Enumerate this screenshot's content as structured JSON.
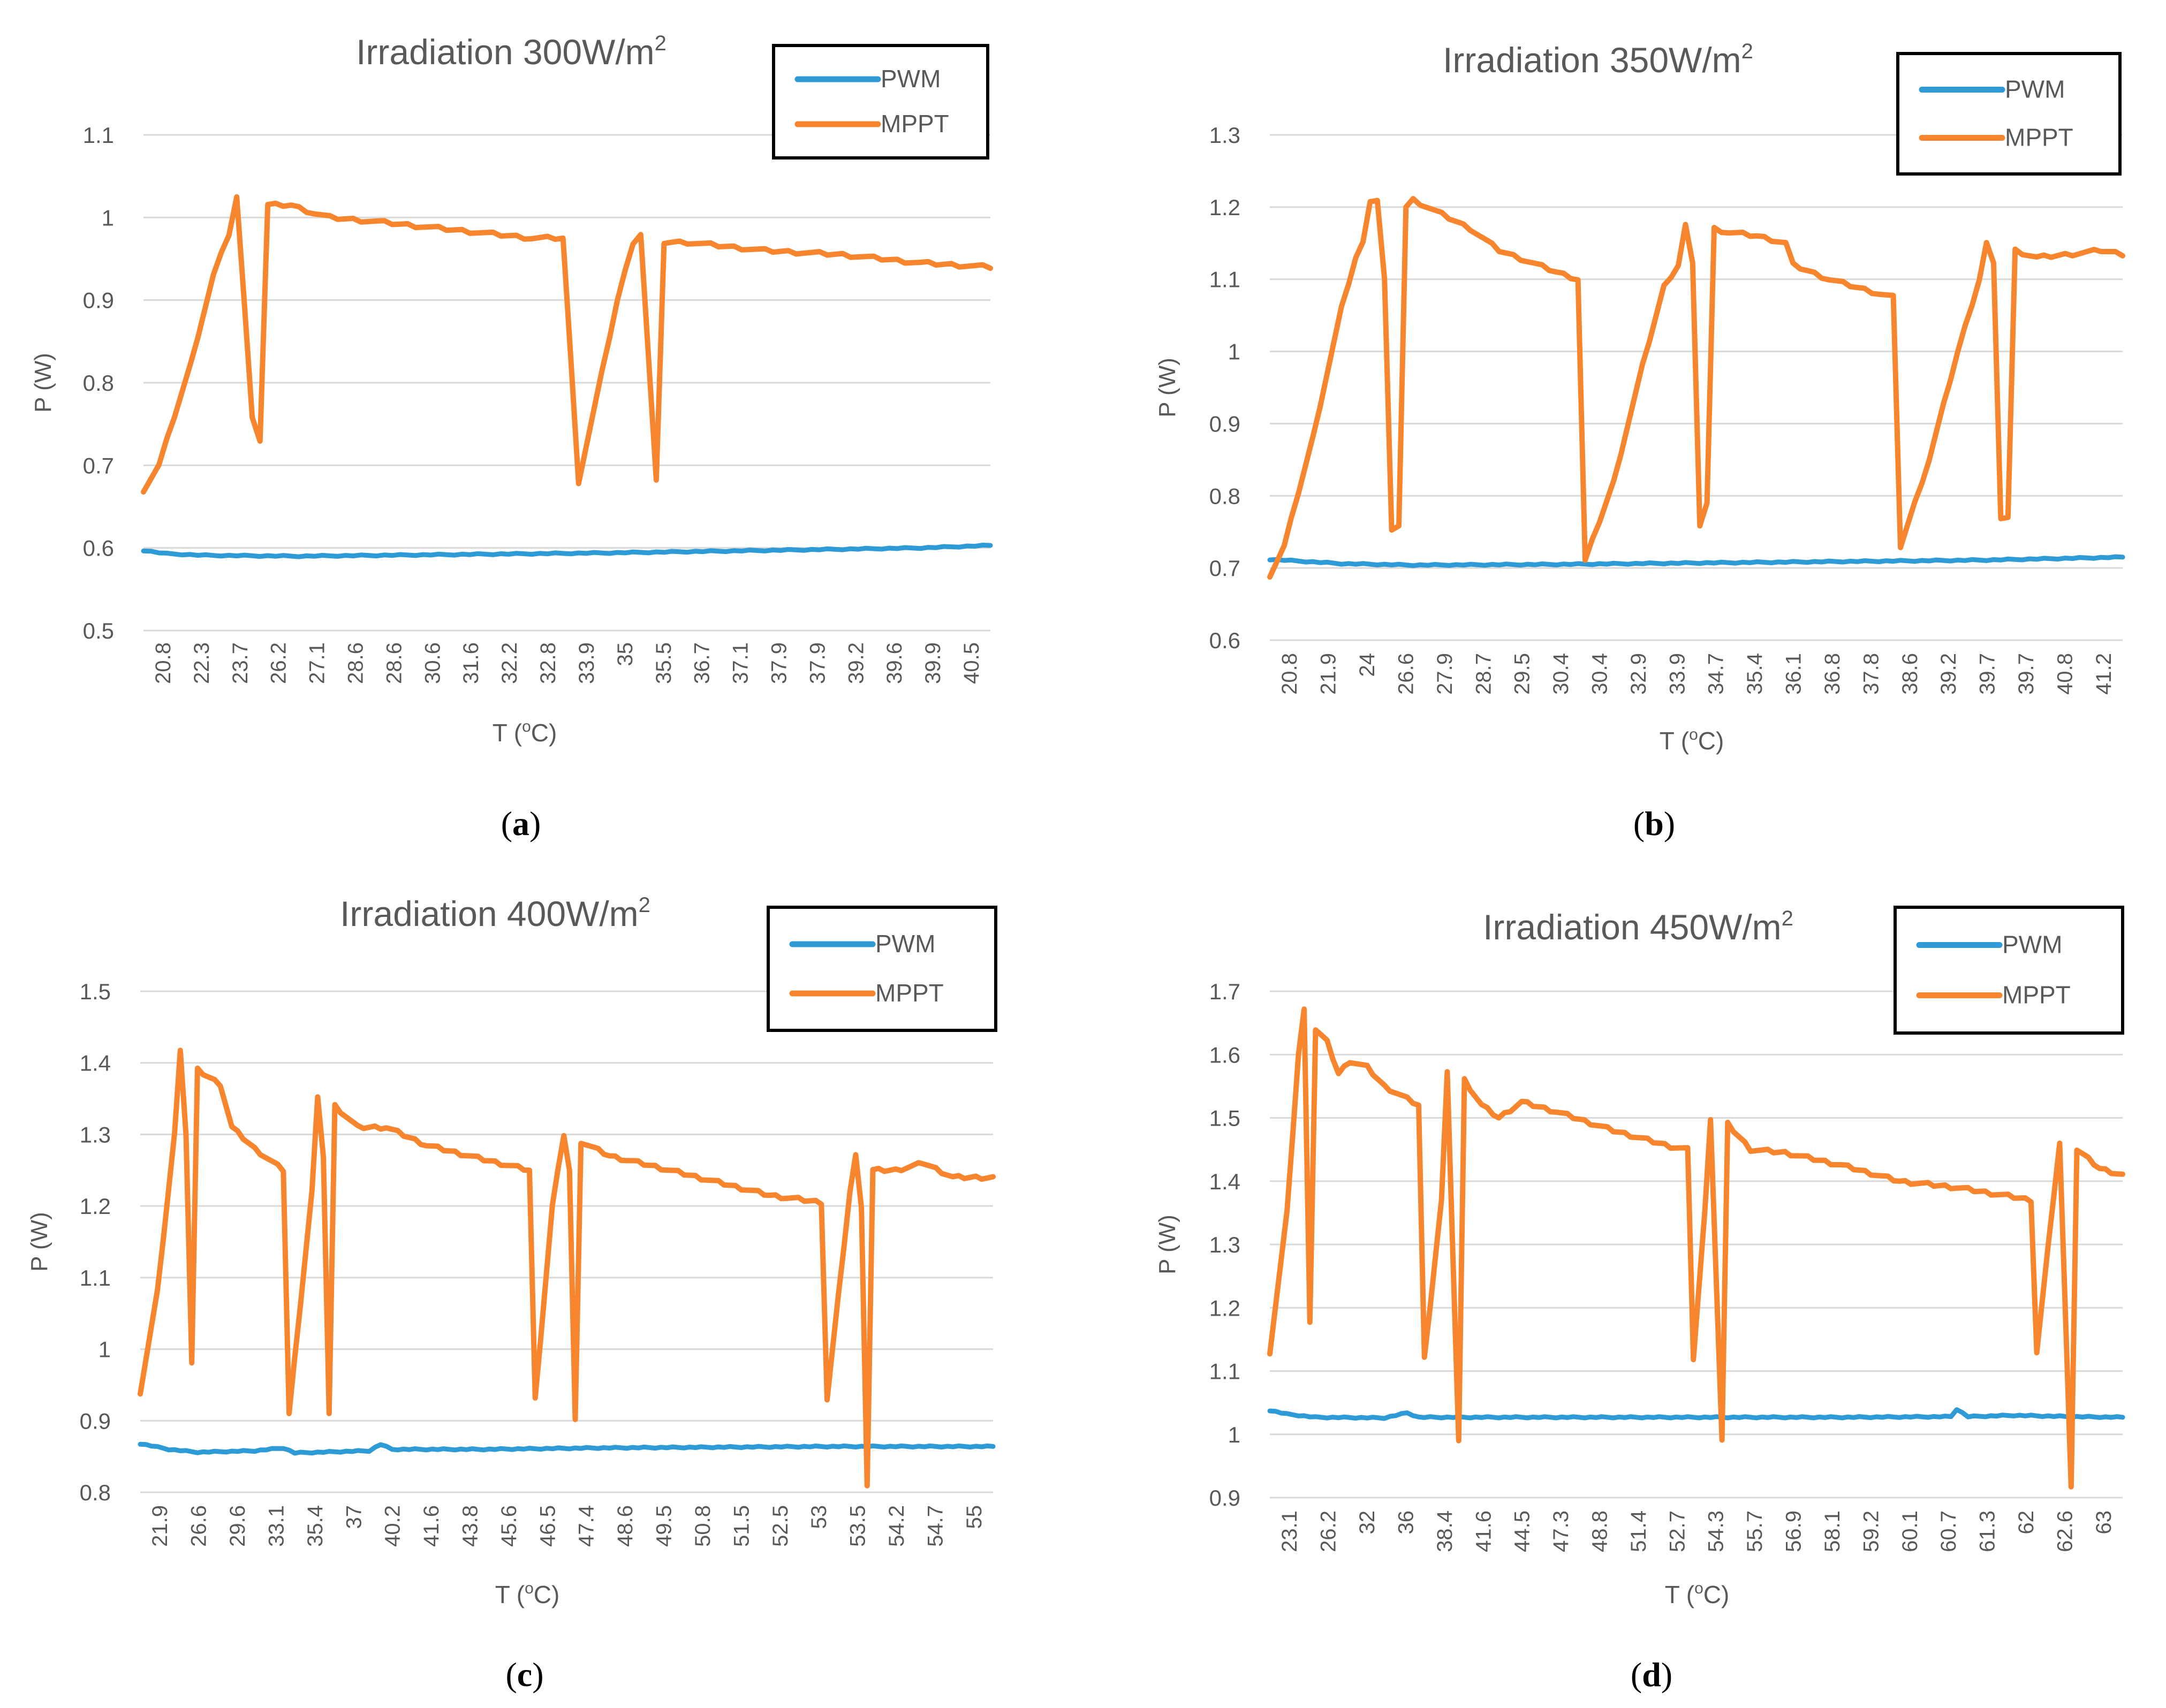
{
  "colors": {
    "pwm": "#2E9BD6",
    "mppt": "#F7852E",
    "grid": "#d9d9d9",
    "axis_text": "#595959",
    "title_text": "#595959",
    "legend_border": "#000000"
  },
  "legend_position": "top-right",
  "chart_data": [
    {
      "type": "line",
      "caption_letter": "a",
      "caption_open": "(",
      "caption_close": ")",
      "title_main": "Irradiation 300W/m",
      "title_sup": "2",
      "xlabel_main": "T (",
      "xlabel_sup": "o",
      "xlabel_end": "C)",
      "ylabel": "P (W)",
      "ylim": [
        0.5,
        1.1
      ],
      "yticks": [
        "0.5",
        "0.6",
        "0.7",
        "0.8",
        "0.9",
        "1",
        "1.1"
      ],
      "x_tick_labels": [
        "20.8",
        "22.3",
        "23.7",
        "26.2",
        "27.1",
        "28.6",
        "28.6",
        "30.6",
        "31.6",
        "32.2",
        "32.8",
        "33.9",
        "35",
        "35.5",
        "36.7",
        "37.1",
        "37.9",
        "37.9",
        "39.2",
        "39.6",
        "39.9",
        "40.5"
      ],
      "n_points": 110,
      "series": [
        {
          "name": "PWM",
          "breakpoints": [
            [
              0,
              0.597
            ],
            [
              3,
              0.593
            ],
            [
              8,
              0.591
            ],
            [
              20,
              0.59
            ],
            [
              40,
              0.592
            ],
            [
              60,
              0.594
            ],
            [
              80,
              0.597
            ],
            [
              100,
              0.6
            ],
            [
              109,
              0.603
            ]
          ]
        },
        {
          "name": "MPPT",
          "breakpoints": [
            [
              0,
              0.67
            ],
            [
              2,
              0.7
            ],
            [
              6,
              0.82
            ],
            [
              9,
              0.93
            ],
            [
              11,
              0.98
            ],
            [
              12,
              1.025
            ],
            [
              14,
              0.76
            ],
            [
              15,
              0.73
            ],
            [
              16,
              1.015
            ],
            [
              19,
              1.015
            ],
            [
              22,
              1.005
            ],
            [
              24,
              1.0
            ],
            [
              30,
              0.995
            ],
            [
              40,
              0.985
            ],
            [
              50,
              0.975
            ],
            [
              54,
              0.975
            ],
            [
              56,
              0.68
            ],
            [
              61,
              0.9
            ],
            [
              63,
              0.97
            ],
            [
              64,
              0.98
            ],
            [
              66,
              0.68
            ],
            [
              67,
              0.97
            ],
            [
              70,
              0.97
            ],
            [
              80,
              0.96
            ],
            [
              90,
              0.955
            ],
            [
              100,
              0.945
            ],
            [
              109,
              0.94
            ]
          ]
        }
      ]
    },
    {
      "type": "line",
      "caption_letter": "b",
      "caption_open": "(",
      "caption_close": ")",
      "title_main": "Irradiation 350W/m",
      "title_sup": "2",
      "xlabel_main": "T (",
      "xlabel_sup": "o",
      "xlabel_end": "C)",
      "ylabel": "P (W)",
      "ylim": [
        0.6,
        1.3
      ],
      "yticks": [
        "0.6",
        "0.7",
        "0.8",
        "0.9",
        "1",
        "1.1",
        "1.2",
        "1.3"
      ],
      "x_tick_labels": [
        "20.8",
        "21.9",
        "24",
        "26.6",
        "27.9",
        "28.7",
        "29.5",
        "30.4",
        "30.4",
        "32.9",
        "33.9",
        "34.7",
        "35.4",
        "36.1",
        "36.8",
        "37.8",
        "38.6",
        "39.2",
        "39.7",
        "39.7",
        "40.8",
        "41.2"
      ],
      "n_points": 120,
      "series": [
        {
          "name": "PWM",
          "breakpoints": [
            [
              0,
              0.712
            ],
            [
              10,
              0.706
            ],
            [
              20,
              0.704
            ],
            [
              40,
              0.705
            ],
            [
              60,
              0.707
            ],
            [
              80,
              0.709
            ],
            [
              100,
              0.711
            ],
            [
              119,
              0.715
            ]
          ]
        },
        {
          "name": "MPPT",
          "breakpoints": [
            [
              0,
              0.69
            ],
            [
              2,
              0.73
            ],
            [
              6,
              0.88
            ],
            [
              10,
              1.06
            ],
            [
              12,
              1.13
            ],
            [
              13,
              1.15
            ],
            [
              14,
              1.21
            ],
            [
              15,
              1.21
            ],
            [
              16,
              1.1
            ],
            [
              17,
              0.75
            ],
            [
              18,
              0.76
            ],
            [
              19,
              1.2
            ],
            [
              20,
              1.21
            ],
            [
              24,
              1.19
            ],
            [
              28,
              1.17
            ],
            [
              32,
              1.14
            ],
            [
              40,
              1.11
            ],
            [
              43,
              1.1
            ],
            [
              44,
              0.71
            ],
            [
              48,
              0.82
            ],
            [
              52,
              0.98
            ],
            [
              55,
              1.09
            ],
            [
              57,
              1.12
            ],
            [
              58,
              1.175
            ],
            [
              59,
              1.12
            ],
            [
              60,
              0.76
            ],
            [
              61,
              0.79
            ],
            [
              62,
              1.17
            ],
            [
              64,
              1.165
            ],
            [
              68,
              1.16
            ],
            [
              72,
              1.15
            ],
            [
              73,
              1.12
            ],
            [
              78,
              1.1
            ],
            [
              85,
              1.08
            ],
            [
              87,
              1.075
            ],
            [
              88,
              0.73
            ],
            [
              92,
              0.85
            ],
            [
              96,
              1.0
            ],
            [
              99,
              1.1
            ],
            [
              100,
              1.15
            ],
            [
              101,
              1.12
            ],
            [
              102,
              0.77
            ],
            [
              103,
              0.77
            ],
            [
              104,
              1.14
            ],
            [
              107,
              1.13
            ],
            [
              112,
              1.135
            ],
            [
              116,
              1.14
            ],
            [
              119,
              1.135
            ]
          ]
        }
      ]
    },
    {
      "type": "line",
      "caption_letter": "c",
      "caption_open": "(",
      "caption_close": ")",
      "title_main": "Irradiation 400W/m",
      "title_sup": "2",
      "xlabel_main": "T (",
      "xlabel_sup": "o",
      "xlabel_end": "C)",
      "ylabel": "P (W)",
      "ylim": [
        0.8,
        1.5
      ],
      "yticks": [
        "0.8",
        "0.9",
        "1",
        "1.1",
        "1.2",
        "1.3",
        "1.4",
        "1.5"
      ],
      "x_tick_labels": [
        "21.9",
        "26.6",
        "29.6",
        "33.1",
        "35.4",
        "37",
        "40.2",
        "41.6",
        "43.8",
        "45.6",
        "46.5",
        "47.4",
        "48.6",
        "49.5",
        "50.8",
        "51.5",
        "52.5",
        "53",
        "53.5",
        "54.2",
        "54.7",
        "55"
      ],
      "n_points": 150,
      "series": [
        {
          "name": "PWM",
          "breakpoints": [
            [
              0,
              0.868
            ],
            [
              5,
              0.86
            ],
            [
              10,
              0.856
            ],
            [
              20,
              0.858
            ],
            [
              25,
              0.862
            ],
            [
              27,
              0.855
            ],
            [
              40,
              0.858
            ],
            [
              42,
              0.867
            ],
            [
              44,
              0.86
            ],
            [
              60,
              0.86
            ],
            [
              80,
              0.862
            ],
            [
              100,
              0.863
            ],
            [
              120,
              0.864
            ],
            [
              149,
              0.864
            ]
          ]
        },
        {
          "name": "MPPT",
          "breakpoints": [
            [
              0,
              0.94
            ],
            [
              3,
              1.08
            ],
            [
              6,
              1.3
            ],
            [
              7,
              1.42
            ],
            [
              8,
              1.3
            ],
            [
              9,
              0.98
            ],
            [
              10,
              1.39
            ],
            [
              14,
              1.37
            ],
            [
              16,
              1.31
            ],
            [
              20,
              1.28
            ],
            [
              25,
              1.25
            ],
            [
              26,
              0.91
            ],
            [
              30,
              1.22
            ],
            [
              31,
              1.35
            ],
            [
              32,
              1.27
            ],
            [
              33,
              0.91
            ],
            [
              34,
              1.34
            ],
            [
              38,
              1.31
            ],
            [
              43,
              1.31
            ],
            [
              50,
              1.285
            ],
            [
              60,
              1.265
            ],
            [
              68,
              1.25
            ],
            [
              69,
              0.93
            ],
            [
              72,
              1.2
            ],
            [
              74,
              1.3
            ],
            [
              75,
              1.25
            ],
            [
              76,
              0.9
            ],
            [
              77,
              1.29
            ],
            [
              82,
              1.27
            ],
            [
              90,
              1.255
            ],
            [
              100,
              1.235
            ],
            [
              110,
              1.215
            ],
            [
              119,
              1.205
            ],
            [
              120,
              0.93
            ],
            [
              124,
              1.22
            ],
            [
              125,
              1.27
            ],
            [
              126,
              1.2
            ],
            [
              127,
              0.81
            ],
            [
              128,
              1.25
            ],
            [
              132,
              1.25
            ],
            [
              137,
              1.26
            ],
            [
              142,
              1.24
            ],
            [
              149,
              1.24
            ]
          ]
        }
      ]
    },
    {
      "type": "line",
      "caption_letter": "d",
      "caption_open": "(",
      "caption_close": ")",
      "title_main": "Irradiation 450W/m",
      "title_sup": "2",
      "xlabel_main": "T (",
      "xlabel_sup": "o",
      "xlabel_end": "C)",
      "ylabel": "P (W)",
      "ylim": [
        0.9,
        1.7
      ],
      "yticks": [
        "0.9",
        "1",
        "1.1",
        "1.2",
        "1.3",
        "1.4",
        "1.5",
        "1.6",
        "1.7"
      ],
      "x_tick_labels": [
        "23.1",
        "26.2",
        "32",
        "36",
        "38.4",
        "41.6",
        "44.5",
        "47.3",
        "48.8",
        "51.4",
        "52.7",
        "54.3",
        "55.7",
        "56.9",
        "58.1",
        "59.2",
        "60.1",
        "60.7",
        "61.3",
        "62",
        "62.6",
        "63"
      ],
      "n_points": 150,
      "series": [
        {
          "name": "PWM",
          "breakpoints": [
            [
              0,
              1.038
            ],
            [
              3,
              1.032
            ],
            [
              8,
              1.027
            ],
            [
              20,
              1.026
            ],
            [
              24,
              1.034
            ],
            [
              26,
              1.027
            ],
            [
              50,
              1.027
            ],
            [
              80,
              1.027
            ],
            [
              100,
              1.027
            ],
            [
              119,
              1.028
            ],
            [
              120,
              1.04
            ],
            [
              122,
              1.028
            ],
            [
              130,
              1.03
            ],
            [
              140,
              1.028
            ],
            [
              149,
              1.027
            ]
          ]
        },
        {
          "name": "MPPT",
          "breakpoints": [
            [
              0,
              1.13
            ],
            [
              3,
              1.35
            ],
            [
              5,
              1.6
            ],
            [
              6,
              1.67
            ],
            [
              7,
              1.18
            ],
            [
              8,
              1.64
            ],
            [
              10,
              1.62
            ],
            [
              12,
              1.57
            ],
            [
              14,
              1.59
            ],
            [
              17,
              1.58
            ],
            [
              20,
              1.55
            ],
            [
              26,
              1.52
            ],
            [
              27,
              1.12
            ],
            [
              30,
              1.37
            ],
            [
              31,
              1.57
            ],
            [
              33,
              0.99
            ],
            [
              34,
              1.56
            ],
            [
              37,
              1.52
            ],
            [
              40,
              1.5
            ],
            [
              44,
              1.525
            ],
            [
              50,
              1.51
            ],
            [
              60,
              1.48
            ],
            [
              70,
              1.455
            ],
            [
              73,
              1.45
            ],
            [
              74,
              1.12
            ],
            [
              76,
              1.35
            ],
            [
              77,
              1.5
            ],
            [
              79,
              0.99
            ],
            [
              80,
              1.49
            ],
            [
              84,
              1.45
            ],
            [
              90,
              1.445
            ],
            [
              100,
              1.425
            ],
            [
              110,
              1.4
            ],
            [
              120,
              1.39
            ],
            [
              130,
              1.375
            ],
            [
              133,
              1.37
            ],
            [
              134,
              1.13
            ],
            [
              137,
              1.38
            ],
            [
              138,
              1.46
            ],
            [
              140,
              0.92
            ],
            [
              141,
              1.45
            ],
            [
              145,
              1.42
            ],
            [
              149,
              1.41
            ]
          ]
        }
      ]
    }
  ]
}
